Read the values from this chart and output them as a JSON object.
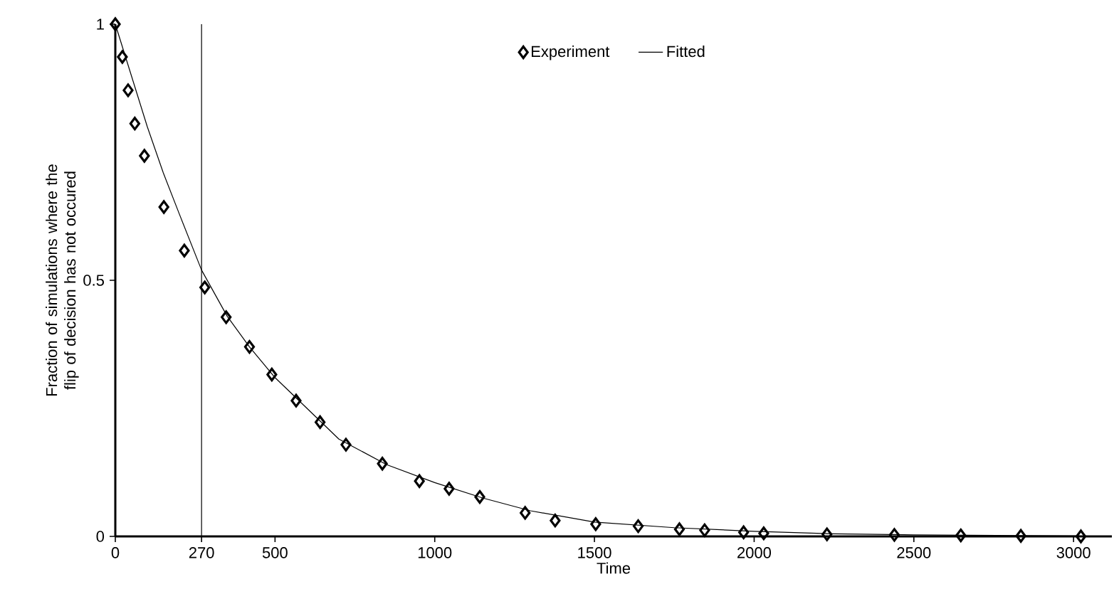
{
  "chart_data": {
    "type": "scatter",
    "xlabel": "Time",
    "ylabel": "Fraction of simulations where the flip of decision has not occured",
    "xlim": [
      0,
      3120
    ],
    "ylim": [
      0,
      1
    ],
    "xticks": [
      0,
      270,
      500,
      1000,
      1500,
      2000,
      2500,
      3000
    ],
    "yticks": [
      0,
      0.5,
      1
    ],
    "legend": "top",
    "grid": false,
    "ref_lines": [
      {
        "axis": "x",
        "value": 270,
        "color": "#000000"
      }
    ],
    "series": [
      {
        "name": "Experiment",
        "marker": "diamond",
        "color": "#000000",
        "x": [
          0,
          22,
          40,
          61,
          91,
          152,
          216,
          280,
          347,
          420,
          490,
          566,
          641,
          722,
          836,
          952,
          1045,
          1141,
          1283,
          1377,
          1504,
          1637,
          1766,
          1845,
          1967,
          2030,
          2228,
          2439,
          2647,
          2835,
          3023
        ],
        "values": [
          1.0,
          0.936,
          0.871,
          0.806,
          0.743,
          0.643,
          0.558,
          0.486,
          0.428,
          0.37,
          0.316,
          0.265,
          0.223,
          0.179,
          0.142,
          0.108,
          0.093,
          0.077,
          0.046,
          0.031,
          0.024,
          0.02,
          0.014,
          0.012,
          0.008,
          0.006,
          0.004,
          0.003,
          0.002,
          0.001,
          0.0
        ]
      },
      {
        "name": "Fitted",
        "type": "line",
        "marker": "none",
        "line_style": "solid",
        "color": "#000000",
        "x": [
          0,
          50,
          100,
          150,
          200,
          270,
          350,
          420,
          500,
          600,
          700,
          850,
          1000,
          1150,
          1300,
          1500,
          1750,
          2000,
          2250,
          2500,
          3020
        ],
        "values": [
          1.0,
          0.9,
          0.8,
          0.71,
          0.63,
          0.52,
          0.43,
          0.37,
          0.31,
          0.25,
          0.19,
          0.14,
          0.105,
          0.075,
          0.05,
          0.028,
          0.017,
          0.01,
          0.005,
          0.003,
          0.001
        ]
      }
    ]
  }
}
